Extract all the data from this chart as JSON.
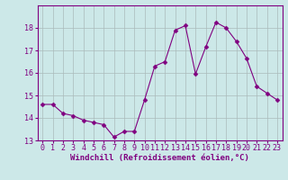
{
  "x": [
    0,
    1,
    2,
    3,
    4,
    5,
    6,
    7,
    8,
    9,
    10,
    11,
    12,
    13,
    14,
    15,
    16,
    17,
    18,
    19,
    20,
    21,
    22,
    23
  ],
  "y": [
    14.6,
    14.6,
    14.2,
    14.1,
    13.9,
    13.8,
    13.7,
    13.15,
    13.4,
    13.4,
    14.8,
    16.3,
    16.5,
    17.9,
    18.1,
    15.95,
    17.15,
    18.25,
    18.0,
    17.4,
    16.65,
    15.4,
    15.1,
    14.8
  ],
  "line_color": "#800080",
  "marker": "D",
  "marker_size": 2.5,
  "bg_color": "#cce8e8",
  "grid_color": "#aabbbb",
  "xlabel": "Windchill (Refroidissement éolien,°C)",
  "xlabel_fontsize": 6.5,
  "tick_fontsize": 6.0,
  "ylim": [
    13,
    19
  ],
  "xlim": [
    -0.5,
    23.5
  ],
  "yticks": [
    13,
    14,
    15,
    16,
    17,
    18
  ],
  "xticks": [
    0,
    1,
    2,
    3,
    4,
    5,
    6,
    7,
    8,
    9,
    10,
    11,
    12,
    13,
    14,
    15,
    16,
    17,
    18,
    19,
    20,
    21,
    22,
    23
  ]
}
